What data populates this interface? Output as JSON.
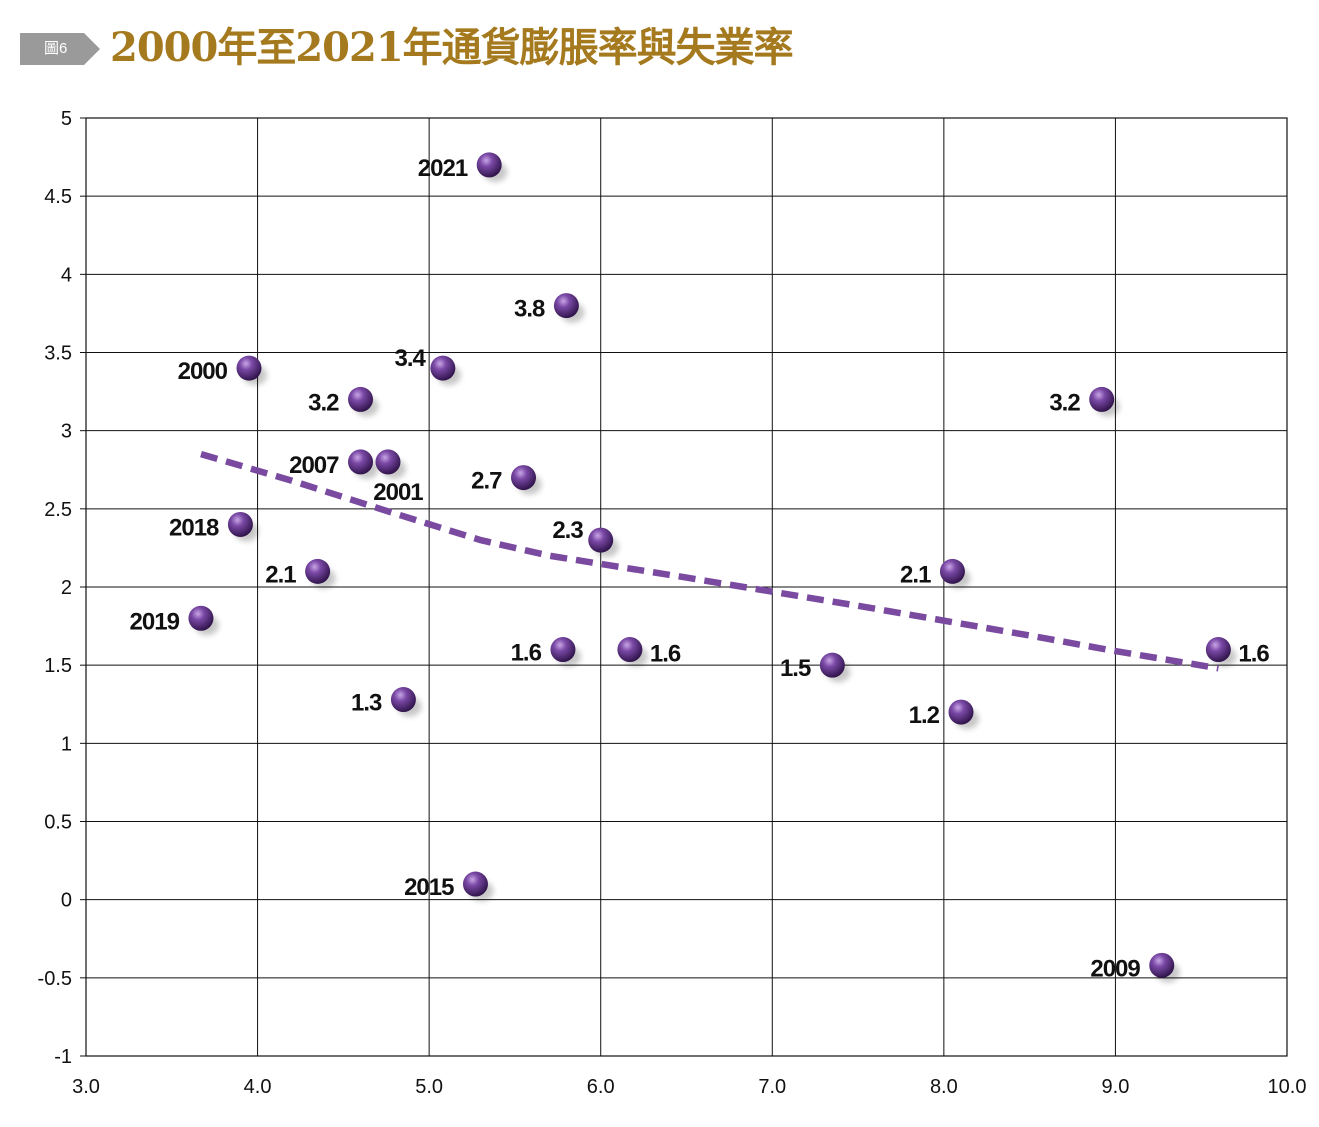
{
  "figure_tag": "圖6",
  "title": "2000年至2021年通貨膨脹率與失業率",
  "colors": {
    "title": "#a57a1e",
    "tag_bg": "#9a9a9a",
    "marker": "#5b2f82",
    "trend": "#7a4aa0",
    "grid": "#111111"
  },
  "chart_data": {
    "type": "scatter",
    "title": "2000年至2021年通貨膨脹率與失業率",
    "xlabel": "",
    "ylabel": "",
    "xlim": [
      3.0,
      10.0
    ],
    "ylim": [
      -1,
      5
    ],
    "x_ticks": [
      "3.0",
      "4.0",
      "5.0",
      "6.0",
      "7.0",
      "8.0",
      "9.0",
      "10.0"
    ],
    "y_ticks": [
      "5",
      "4.5",
      "4",
      "3.5",
      "3",
      "2.5",
      "2",
      "1.5",
      "1",
      "0.5",
      "0",
      "-0.5",
      "-1"
    ],
    "grid": true,
    "points": [
      {
        "x": 5.35,
        "y": 4.7,
        "label": "2021",
        "label_side": "left"
      },
      {
        "x": 5.8,
        "y": 3.8,
        "label": "3.8",
        "label_side": "left"
      },
      {
        "x": 3.95,
        "y": 3.4,
        "label": "2000",
        "label_side": "left"
      },
      {
        "x": 5.08,
        "y": 3.4,
        "label": "3.4",
        "label_side": "left-up"
      },
      {
        "x": 4.6,
        "y": 3.2,
        "label": "3.2",
        "label_side": "left"
      },
      {
        "x": 8.92,
        "y": 3.2,
        "label": "3.2",
        "label_side": "left"
      },
      {
        "x": 4.6,
        "y": 2.8,
        "label": "2007",
        "label_side": "left"
      },
      {
        "x": 4.76,
        "y": 2.8,
        "label": "2001",
        "label_side": "below"
      },
      {
        "x": 5.55,
        "y": 2.7,
        "label": "2.7",
        "label_side": "left"
      },
      {
        "x": 3.9,
        "y": 2.4,
        "label": "2018",
        "label_side": "left"
      },
      {
        "x": 6.0,
        "y": 2.3,
        "label": "2.3",
        "label_side": "left-up"
      },
      {
        "x": 4.35,
        "y": 2.1,
        "label": "2.1",
        "label_side": "left"
      },
      {
        "x": 8.05,
        "y": 2.1,
        "label": "2.1",
        "label_side": "left"
      },
      {
        "x": 3.67,
        "y": 1.8,
        "label": "2019",
        "label_side": "left"
      },
      {
        "x": 5.78,
        "y": 1.6,
        "label": "1.6",
        "label_side": "left"
      },
      {
        "x": 6.17,
        "y": 1.6,
        "label": "1.6",
        "label_side": "right"
      },
      {
        "x": 9.6,
        "y": 1.6,
        "label": "1.6",
        "label_side": "right"
      },
      {
        "x": 7.35,
        "y": 1.5,
        "label": "1.5",
        "label_side": "left"
      },
      {
        "x": 4.85,
        "y": 1.28,
        "label": "1.3",
        "label_side": "left"
      },
      {
        "x": 8.1,
        "y": 1.2,
        "label": "1.2",
        "label_side": "left"
      },
      {
        "x": 5.27,
        "y": 0.1,
        "label": "2015",
        "label_side": "left"
      },
      {
        "x": 9.27,
        "y": -0.42,
        "label": "2009",
        "label_side": "left"
      }
    ],
    "trendline": {
      "style": "dashed",
      "x": [
        3.67,
        4.2,
        4.8,
        5.3,
        5.7,
        6.5,
        7.5,
        8.5,
        9.0,
        9.6
      ],
      "y": [
        2.85,
        2.68,
        2.47,
        2.3,
        2.2,
        2.06,
        1.88,
        1.69,
        1.59,
        1.48
      ]
    }
  }
}
